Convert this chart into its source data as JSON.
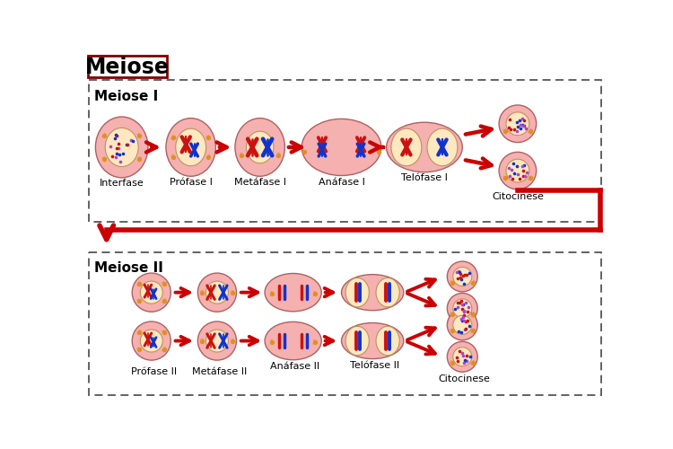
{
  "title": "Meiose",
  "meiose1_label": "Meiose I",
  "meiose2_label": "Meiose II",
  "meiose1_phases": [
    "Interfase",
    "Prófase I",
    "Metáfase I",
    "Anáfase I",
    "Telófase I",
    "Citocinese"
  ],
  "meiose2_phases": [
    "Prófase II",
    "Metáfase II",
    "Anáfase II",
    "Telófase II",
    "Citocinese"
  ],
  "bg_color": "#ffffff",
  "cell_outer": "#f5b0b0",
  "cell_inner": "#fde8c0",
  "arrow_color": "#cc0000",
  "chr_red": "#cc1111",
  "chr_blue": "#1133cc",
  "org_color": "#e09020",
  "border_color": "#555555",
  "title_border": "#800000"
}
